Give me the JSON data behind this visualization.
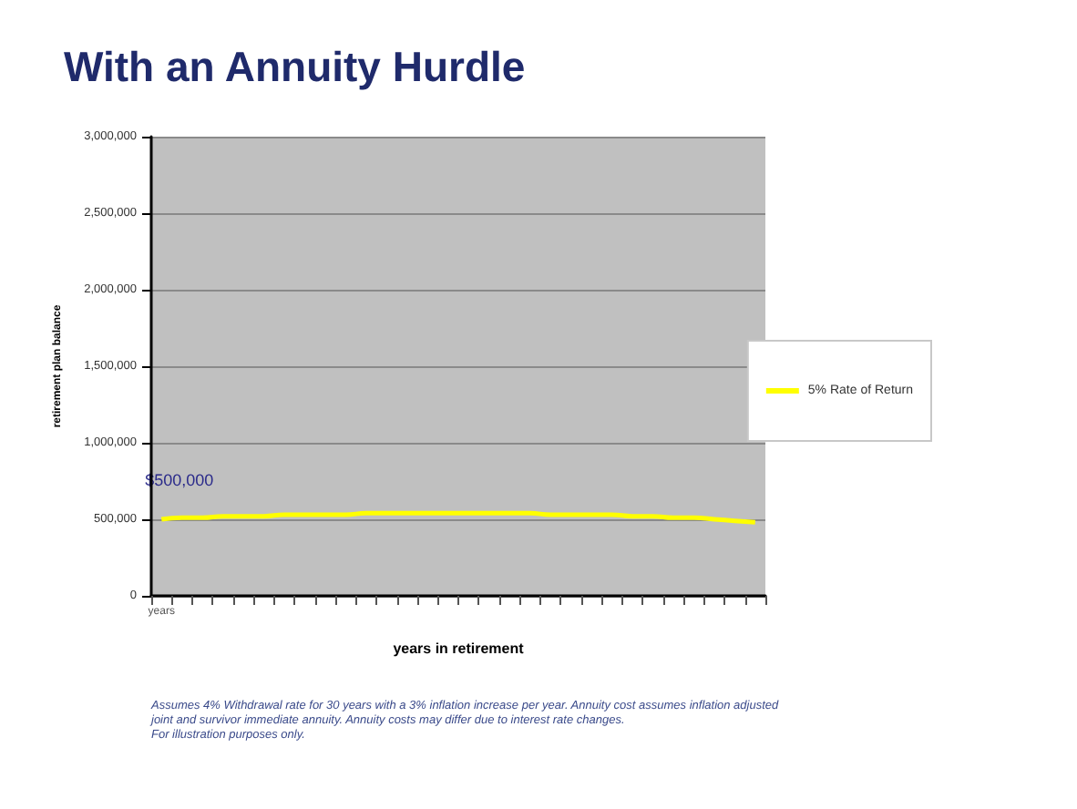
{
  "chart_data": {
    "type": "line",
    "title": "With an Annuity Hurdle",
    "xlabel": "years in retirement",
    "ylabel": "retirement plan balance",
    "categories": [
      "years",
      null,
      null,
      null,
      null,
      null,
      null,
      null,
      null,
      null,
      null,
      null,
      null,
      null,
      null,
      null,
      null,
      null,
      null,
      null,
      null,
      null,
      null,
      null,
      null,
      null,
      null,
      null,
      null,
      null
    ],
    "series": [
      {
        "name": "5% Rate of Return",
        "color": "#ffff00",
        "values": [
          500000,
          510000,
          510000,
          520000,
          520000,
          520000,
          530000,
          530000,
          530000,
          530000,
          540000,
          540000,
          540000,
          540000,
          540000,
          540000,
          540000,
          540000,
          540000,
          530000,
          530000,
          530000,
          530000,
          520000,
          520000,
          510000,
          510000,
          500000,
          490000,
          480000
        ]
      }
    ],
    "ylim": [
      0,
      3000000
    ],
    "yticks": [
      0,
      {
        "value": 500000,
        "label": "500,000"
      },
      {
        "value": 1000000,
        "label": "1,000,000"
      },
      {
        "value": 1500000,
        "label": "1,500,000"
      },
      {
        "value": 2000000,
        "label": "2,000,000"
      },
      {
        "value": 2500000,
        "label": "2,500,000"
      },
      {
        "value": 3000000,
        "label": "3,000,000"
      }
    ],
    "grid": "y",
    "legend": "right",
    "annotations": [
      {
        "text": "$500,000",
        "x": "years",
        "y": 500000
      },
      "Assumes 4% Withdrawal rate for 30 years with a 3% inflation increase per year.  Annuity cost assumes inflation adjusted",
      "joint and survivor immediate annuity.  Annuity costs may differ due to interest rate changes.",
      "For illustration purposes only."
    ]
  }
}
